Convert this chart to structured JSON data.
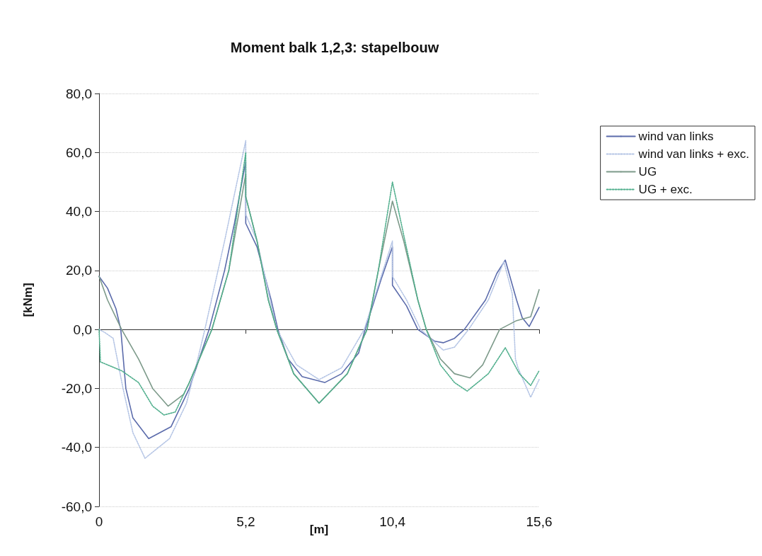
{
  "chart_data": {
    "type": "line",
    "title": "Moment balk 1,2,3: stapelbouw",
    "xlabel": "[m]",
    "ylabel": "[kNm]",
    "xlim": [
      0,
      15.6
    ],
    "xticks": [
      0,
      {
        "value": 5.2,
        "label": "5,2"
      },
      {
        "value": 10.4,
        "label": "10,4"
      },
      {
        "value": 15.6,
        "label": "15,6"
      }
    ],
    "ylim": [
      -60,
      80
    ],
    "yticks": [
      {
        "value": -60,
        "label": "-60,0"
      },
      {
        "value": -40,
        "label": "-40,0"
      },
      {
        "value": -20,
        "label": "-20,0"
      },
      {
        "value": 0,
        "label": "0,0"
      },
      {
        "value": 20,
        "label": "20,0"
      },
      {
        "value": 40,
        "label": "40,0"
      },
      {
        "value": 60,
        "label": "60,0"
      },
      {
        "value": 80,
        "label": "80,0"
      }
    ],
    "grid": "y",
    "legend": "right",
    "marker": "none",
    "series": [
      {
        "name": "wind van links",
        "color": "#5b6bab",
        "line_style": "solid",
        "x": [
          0,
          0.3,
          0.6,
          0.77,
          0.95,
          1.2,
          1.76,
          2.55,
          3.2,
          3.9,
          4.45,
          4.8,
          5.2,
          5.2,
          5.6,
          6.1,
          6.34,
          6.7,
          7.2,
          8.0,
          8.6,
          9.2,
          9.43,
          10.0,
          10.4,
          10.4,
          10.9,
          11.3,
          11.9,
          12.2,
          12.6,
          12.95,
          13.7,
          14.1,
          14.4,
          14.8,
          15.0,
          15.25,
          15.6
        ],
        "values": [
          18,
          14,
          7,
          0,
          -20,
          -30,
          -37,
          -33,
          -20,
          0,
          20,
          36,
          57,
          36,
          28,
          10,
          0,
          -10,
          -16,
          -18,
          -15,
          -8,
          0,
          17,
          28,
          15,
          8,
          0,
          -4,
          -4.5,
          -3,
          0,
          10,
          19,
          23.5,
          10,
          4,
          1,
          7.5
        ]
      },
      {
        "name": "wind van links + exc.",
        "color": "#b5c5e5",
        "line_style": "dotted",
        "x": [
          0,
          0.2,
          0.5,
          0.85,
          1.2,
          1.63,
          2.5,
          3.1,
          3.5,
          3.75,
          4.45,
          5.2,
          5.2,
          5.6,
          6.3,
          7.0,
          7.8,
          8.6,
          9.4,
          10.0,
          10.4,
          10.4,
          10.9,
          11.4,
          12.2,
          12.6,
          13.1,
          13.8,
          14.35,
          14.65,
          14.76,
          14.85,
          15.3,
          15.6
        ],
        "values": [
          0,
          -1,
          -3,
          -20,
          -35,
          -43.7,
          -37,
          -25,
          -10,
          0,
          30,
          64,
          39,
          30,
          0,
          -12,
          -17,
          -13,
          0,
          18,
          30,
          18,
          10,
          0,
          -7,
          -6,
          0,
          10,
          23,
          12,
          -10,
          -13,
          -23,
          -17
        ]
      },
      {
        "name": "UG",
        "color": "#7d9a8a",
        "line_style": "solid",
        "x": [
          0,
          0.3,
          0.8,
          1.4,
          1.9,
          2.45,
          3.0,
          3.2,
          4.0,
          4.6,
          5.2,
          5.2,
          5.6,
          6.0,
          6.3,
          6.9,
          7.8,
          8.8,
          9.5,
          9.9,
          10.4,
          10.8,
          11.3,
          11.6,
          12.1,
          12.6,
          13.15,
          13.6,
          14.2,
          14.8,
          15.3,
          15.6
        ],
        "values": [
          18,
          10,
          0,
          -10,
          -20,
          -26,
          -22,
          -18,
          0,
          20,
          52.7,
          45,
          30,
          10,
          0,
          -15,
          -25,
          -15,
          0,
          20,
          43.5,
          30,
          10,
          0,
          -10,
          -15,
          -16.4,
          -12,
          0,
          3,
          4.3,
          13.5
        ]
      },
      {
        "name": "UG + exc.",
        "color": "#4fae8c",
        "line_style": "dotted",
        "x": [
          0,
          0.05,
          0.8,
          1.4,
          1.9,
          2.3,
          2.7,
          3.2,
          4.0,
          4.6,
          5.2,
          5.2,
          5.6,
          6.0,
          6.3,
          6.9,
          7.8,
          8.8,
          9.5,
          9.9,
          10.4,
          10.8,
          11.3,
          11.6,
          12.1,
          12.6,
          13.05,
          13.8,
          14.4,
          14.9,
          15.3,
          15.6
        ],
        "values": [
          0,
          -11,
          -14,
          -18,
          -26,
          -29,
          -28,
          -18,
          0,
          20,
          60,
          45,
          30,
          10,
          0,
          -15,
          -25,
          -15,
          0,
          20,
          50,
          32,
          10,
          0,
          -12,
          -18,
          -20.9,
          -15,
          -6.2,
          -15,
          -19,
          -14
        ]
      }
    ]
  }
}
